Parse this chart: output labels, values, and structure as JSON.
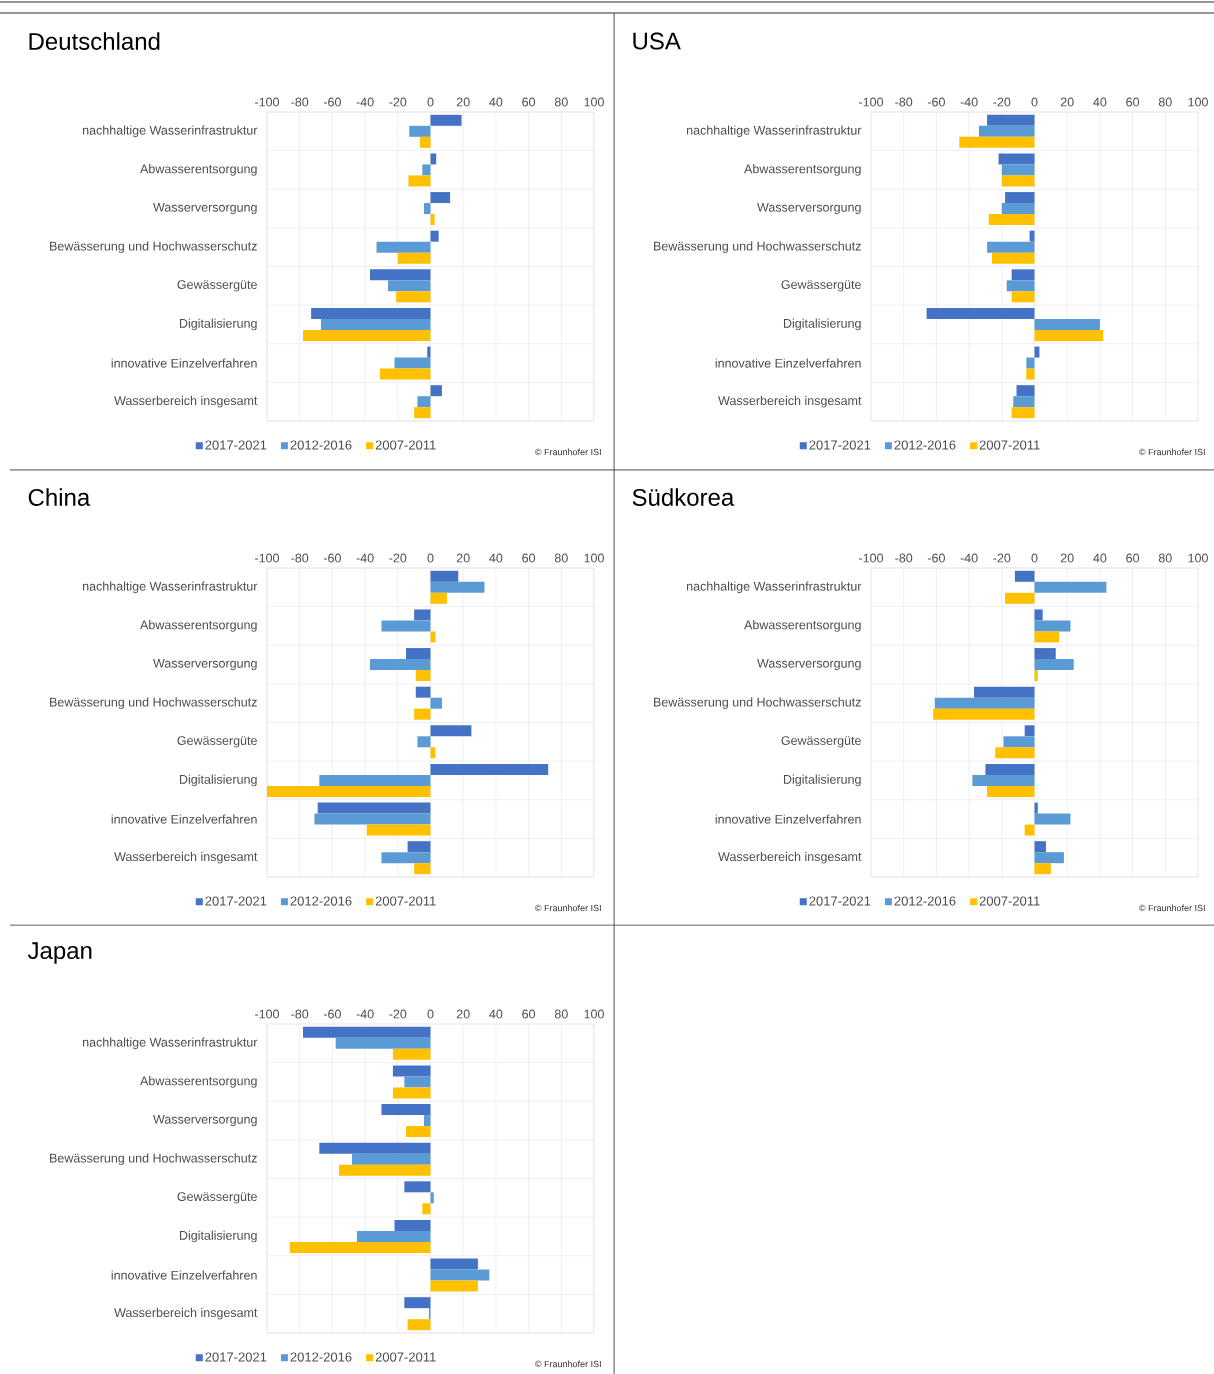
{
  "chart_data": [
    {
      "type": "bar",
      "orientation": "horizontal",
      "title": "Deutschland",
      "categories": [
        "nachhaltige Wasserinfrastruktur",
        "Abwasserentsorgung",
        "Wasserversorgung",
        "Bewässerung und Hochwasserschutz",
        "Gewässergüte",
        "Digitalisierung",
        "innovative Einzelverfahren",
        "Wasserbereich insgesamt"
      ],
      "series": [
        {
          "name": "2017-2021",
          "color": "#4472c4",
          "values": [
            19,
            3.5,
            12,
            5,
            -37,
            -73,
            -2,
            7
          ]
        },
        {
          "name": "2012-2016",
          "color": "#5b9bd5",
          "values": [
            -13,
            -5,
            -4,
            -33,
            -26,
            -67,
            -22,
            -8
          ]
        },
        {
          "name": "2007-2011",
          "color": "#ffc000",
          "values": [
            -6.5,
            -13.5,
            2.5,
            -20,
            -21,
            -78,
            -31,
            -10
          ]
        }
      ],
      "xlim": [
        -100,
        100
      ],
      "xticks": [
        -100,
        -80,
        -60,
        -40,
        -20,
        0,
        20,
        40,
        60,
        80,
        100
      ],
      "grid": true,
      "legend": "bottom",
      "annotations": [
        "© Fraunhofer ISI"
      ]
    },
    {
      "type": "bar",
      "orientation": "horizontal",
      "title": "USA",
      "categories": [
        "nachhaltige Wasserinfrastruktur",
        "Abwasserentsorgung",
        "Wasserversorgung",
        "Bewässerung und Hochwasserschutz",
        "Gewässergüte",
        "Digitalisierung",
        "innovative Einzelverfahren",
        "Wasserbereich insgesamt"
      ],
      "series": [
        {
          "name": "2017-2021",
          "color": "#4472c4",
          "values": [
            -29,
            -22,
            -18,
            -3,
            -14,
            -66,
            3,
            -11
          ]
        },
        {
          "name": "2012-2016",
          "color": "#5b9bd5",
          "values": [
            -34,
            -20,
            -20,
            -29,
            -17,
            40,
            -5,
            -13
          ]
        },
        {
          "name": "2007-2011",
          "color": "#ffc000",
          "values": [
            -46,
            -20,
            -28,
            -26,
            -14,
            42,
            -5,
            -14
          ]
        }
      ],
      "xlim": [
        -100,
        100
      ],
      "xticks": [
        -100,
        -80,
        -60,
        -40,
        -20,
        0,
        20,
        40,
        60,
        80,
        100
      ],
      "grid": true,
      "legend": "bottom",
      "annotations": [
        "© Fraunhofer ISI"
      ]
    },
    {
      "type": "bar",
      "orientation": "horizontal",
      "title": "China",
      "categories": [
        "nachhaltige Wasserinfrastruktur",
        "Abwasserentsorgung",
        "Wasserversorgung",
        "Bewässerung und Hochwasserschutz",
        "Gewässergüte",
        "Digitalisierung",
        "innovative Einzelverfahren",
        "Wasserbereich insgesamt"
      ],
      "series": [
        {
          "name": "2017-2021",
          "color": "#4472c4",
          "values": [
            17,
            -10,
            -15,
            -9,
            25,
            72,
            -69,
            -14
          ]
        },
        {
          "name": "2012-2016",
          "color": "#5b9bd5",
          "values": [
            33,
            -30,
            -37,
            7,
            -8,
            -68,
            -71,
            -30
          ]
        },
        {
          "name": "2007-2011",
          "color": "#ffc000",
          "values": [
            10,
            3,
            -9,
            -10,
            3,
            -100,
            -39,
            -10
          ]
        }
      ],
      "xlim": [
        -100,
        100
      ],
      "xticks": [
        -100,
        -80,
        -60,
        -40,
        -20,
        0,
        20,
        40,
        60,
        80,
        100
      ],
      "grid": true,
      "legend": "bottom",
      "annotations": [
        "© Fraunhofer ISI"
      ]
    },
    {
      "type": "bar",
      "orientation": "horizontal",
      "title": "Südkorea",
      "categories": [
        "nachhaltige Wasserinfrastruktur",
        "Abwasserentsorgung",
        "Wasserversorgung",
        "Bewässerung und Hochwasserschutz",
        "Gewässergüte",
        "Digitalisierung",
        "innovative Einzelverfahren",
        "Wasserbereich insgesamt"
      ],
      "series": [
        {
          "name": "2017-2021",
          "color": "#4472c4",
          "values": [
            -12,
            5,
            13,
            -37,
            -6,
            -30,
            2,
            7
          ]
        },
        {
          "name": "2012-2016",
          "color": "#5b9bd5",
          "values": [
            44,
            22,
            24,
            -61,
            -19,
            -38,
            22,
            18
          ]
        },
        {
          "name": "2007-2011",
          "color": "#ffc000",
          "values": [
            -18,
            15,
            2,
            -62,
            -24,
            -29,
            -6,
            10
          ]
        }
      ],
      "xlim": [
        -100,
        100
      ],
      "xticks": [
        -100,
        -80,
        -60,
        -40,
        -20,
        0,
        20,
        40,
        60,
        80,
        100
      ],
      "grid": true,
      "legend": "bottom",
      "annotations": [
        "© Fraunhofer ISI"
      ]
    },
    {
      "type": "bar",
      "orientation": "horizontal",
      "title": "Japan",
      "categories": [
        "nachhaltige Wasserinfrastruktur",
        "Abwasserentsorgung",
        "Wasserversorgung",
        "Bewässerung und Hochwasserschutz",
        "Gewässergüte",
        "Digitalisierung",
        "innovative Einzelverfahren",
        "Wasserbereich insgesamt"
      ],
      "series": [
        {
          "name": "2017-2021",
          "color": "#4472c4",
          "values": [
            -78,
            -23,
            -30,
            -68,
            -16,
            -22,
            29,
            -16
          ]
        },
        {
          "name": "2012-2016",
          "color": "#5b9bd5",
          "values": [
            -58,
            -16,
            -4,
            -48,
            2,
            -45,
            36,
            -1
          ]
        },
        {
          "name": "2007-2011",
          "color": "#ffc000",
          "values": [
            -23,
            -23,
            -15,
            -56,
            -5,
            -86,
            29,
            -14
          ]
        }
      ],
      "xlim": [
        -100,
        100
      ],
      "xticks": [
        -100,
        -80,
        -60,
        -40,
        -20,
        0,
        20,
        40,
        60,
        80,
        100
      ],
      "grid": true,
      "legend": "bottom",
      "annotations": [
        "© Fraunhofer ISI"
      ]
    }
  ]
}
